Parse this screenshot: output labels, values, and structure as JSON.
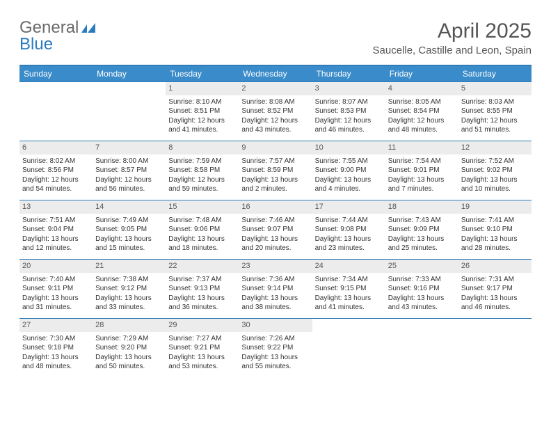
{
  "logo": {
    "word1": "General",
    "word2": "Blue"
  },
  "title": "April 2025",
  "location": "Saucelle, Castille and Leon, Spain",
  "colors": {
    "header_bg": "#3a8bc9",
    "header_border": "#2f7cb8",
    "daynum_bg": "#ececec",
    "text": "#333333"
  },
  "weekdays": [
    "Sunday",
    "Monday",
    "Tuesday",
    "Wednesday",
    "Thursday",
    "Friday",
    "Saturday"
  ],
  "weeks": [
    [
      null,
      null,
      {
        "n": "1",
        "sr": "8:10 AM",
        "ss": "8:51 PM",
        "dl": "12 hours and 41 minutes."
      },
      {
        "n": "2",
        "sr": "8:08 AM",
        "ss": "8:52 PM",
        "dl": "12 hours and 43 minutes."
      },
      {
        "n": "3",
        "sr": "8:07 AM",
        "ss": "8:53 PM",
        "dl": "12 hours and 46 minutes."
      },
      {
        "n": "4",
        "sr": "8:05 AM",
        "ss": "8:54 PM",
        "dl": "12 hours and 48 minutes."
      },
      {
        "n": "5",
        "sr": "8:03 AM",
        "ss": "8:55 PM",
        "dl": "12 hours and 51 minutes."
      }
    ],
    [
      {
        "n": "6",
        "sr": "8:02 AM",
        "ss": "8:56 PM",
        "dl": "12 hours and 54 minutes."
      },
      {
        "n": "7",
        "sr": "8:00 AM",
        "ss": "8:57 PM",
        "dl": "12 hours and 56 minutes."
      },
      {
        "n": "8",
        "sr": "7:59 AM",
        "ss": "8:58 PM",
        "dl": "12 hours and 59 minutes."
      },
      {
        "n": "9",
        "sr": "7:57 AM",
        "ss": "8:59 PM",
        "dl": "13 hours and 2 minutes."
      },
      {
        "n": "10",
        "sr": "7:55 AM",
        "ss": "9:00 PM",
        "dl": "13 hours and 4 minutes."
      },
      {
        "n": "11",
        "sr": "7:54 AM",
        "ss": "9:01 PM",
        "dl": "13 hours and 7 minutes."
      },
      {
        "n": "12",
        "sr": "7:52 AM",
        "ss": "9:02 PM",
        "dl": "13 hours and 10 minutes."
      }
    ],
    [
      {
        "n": "13",
        "sr": "7:51 AM",
        "ss": "9:04 PM",
        "dl": "13 hours and 12 minutes."
      },
      {
        "n": "14",
        "sr": "7:49 AM",
        "ss": "9:05 PM",
        "dl": "13 hours and 15 minutes."
      },
      {
        "n": "15",
        "sr": "7:48 AM",
        "ss": "9:06 PM",
        "dl": "13 hours and 18 minutes."
      },
      {
        "n": "16",
        "sr": "7:46 AM",
        "ss": "9:07 PM",
        "dl": "13 hours and 20 minutes."
      },
      {
        "n": "17",
        "sr": "7:44 AM",
        "ss": "9:08 PM",
        "dl": "13 hours and 23 minutes."
      },
      {
        "n": "18",
        "sr": "7:43 AM",
        "ss": "9:09 PM",
        "dl": "13 hours and 25 minutes."
      },
      {
        "n": "19",
        "sr": "7:41 AM",
        "ss": "9:10 PM",
        "dl": "13 hours and 28 minutes."
      }
    ],
    [
      {
        "n": "20",
        "sr": "7:40 AM",
        "ss": "9:11 PM",
        "dl": "13 hours and 31 minutes."
      },
      {
        "n": "21",
        "sr": "7:38 AM",
        "ss": "9:12 PM",
        "dl": "13 hours and 33 minutes."
      },
      {
        "n": "22",
        "sr": "7:37 AM",
        "ss": "9:13 PM",
        "dl": "13 hours and 36 minutes."
      },
      {
        "n": "23",
        "sr": "7:36 AM",
        "ss": "9:14 PM",
        "dl": "13 hours and 38 minutes."
      },
      {
        "n": "24",
        "sr": "7:34 AM",
        "ss": "9:15 PM",
        "dl": "13 hours and 41 minutes."
      },
      {
        "n": "25",
        "sr": "7:33 AM",
        "ss": "9:16 PM",
        "dl": "13 hours and 43 minutes."
      },
      {
        "n": "26",
        "sr": "7:31 AM",
        "ss": "9:17 PM",
        "dl": "13 hours and 46 minutes."
      }
    ],
    [
      {
        "n": "27",
        "sr": "7:30 AM",
        "ss": "9:18 PM",
        "dl": "13 hours and 48 minutes."
      },
      {
        "n": "28",
        "sr": "7:29 AM",
        "ss": "9:20 PM",
        "dl": "13 hours and 50 minutes."
      },
      {
        "n": "29",
        "sr": "7:27 AM",
        "ss": "9:21 PM",
        "dl": "13 hours and 53 minutes."
      },
      {
        "n": "30",
        "sr": "7:26 AM",
        "ss": "9:22 PM",
        "dl": "13 hours and 55 minutes."
      },
      null,
      null,
      null
    ]
  ],
  "labels": {
    "sunrise": "Sunrise:",
    "sunset": "Sunset:",
    "daylight": "Daylight:"
  }
}
